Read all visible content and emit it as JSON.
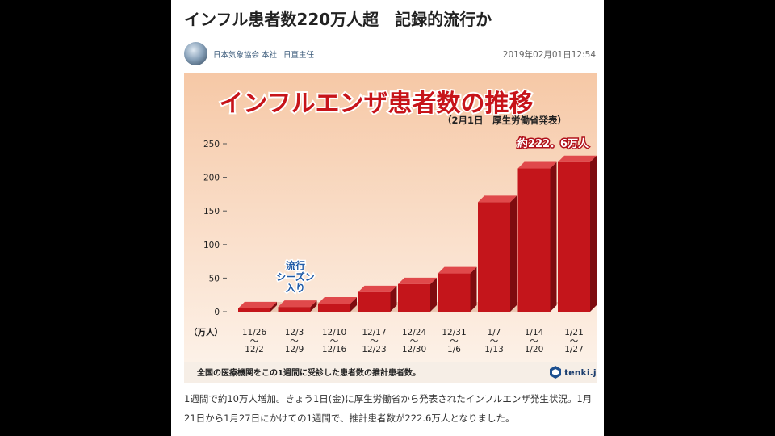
{
  "article": {
    "headline": "インフル患者数220万人超　記録的流行か",
    "author_org": "日本気象協会 本社",
    "author_name": "日直主任",
    "date": "2019年02月01日12:54",
    "body_text": "1週間で約10万人増加。きょう1日(金)に厚生労働省から発表されたインフルエンザ発生状況。1月21日から1月27日にかけての1週間で、推計患者数が222.6万人となりました。"
  },
  "colors": {
    "background_top": "#f6c8a6",
    "background_bottom": "#fdf4ec",
    "bar_front": "#c4151b",
    "bar_side": "#7e0b0f",
    "bar_top": "#e0494b",
    "title_red": "#c7141a"
  },
  "chart_data": {
    "type": "bar",
    "title": "インフルエンザ患者数の推移",
    "subtitle": "（2月1日　厚生労働省発表）",
    "yunit": "（万人）",
    "ylim": [
      0,
      250
    ],
    "yticks": [
      0,
      50,
      100,
      150,
      200,
      250
    ],
    "categories": [
      {
        "start": "11/26",
        "sep": "～",
        "end": "12/2"
      },
      {
        "start": "12/3",
        "sep": "～",
        "end": "12/9"
      },
      {
        "start": "12/10",
        "sep": "～",
        "end": "12/16"
      },
      {
        "start": "12/17",
        "sep": "～",
        "end": "12/23"
      },
      {
        "start": "12/24",
        "sep": "～",
        "end": "12/30"
      },
      {
        "start": "12/31",
        "sep": "～",
        "end": "1/6"
      },
      {
        "start": "1/7",
        "sep": "～",
        "end": "1/13"
      },
      {
        "start": "1/14",
        "sep": "～",
        "end": "1/20"
      },
      {
        "start": "1/21",
        "sep": "～",
        "end": "1/27"
      }
    ],
    "values": [
      5,
      7,
      12,
      29,
      41,
      57,
      163,
      213.3,
      222.6
    ],
    "annotations": {
      "season": [
        "流行",
        "シーズン",
        "入り"
      ],
      "last_value": "約222．6万人"
    },
    "footnote": "全国の医療機関をこの1週間に受診した患者数の推計患者数。",
    "brand": "tenki.jp",
    "grid": false
  }
}
